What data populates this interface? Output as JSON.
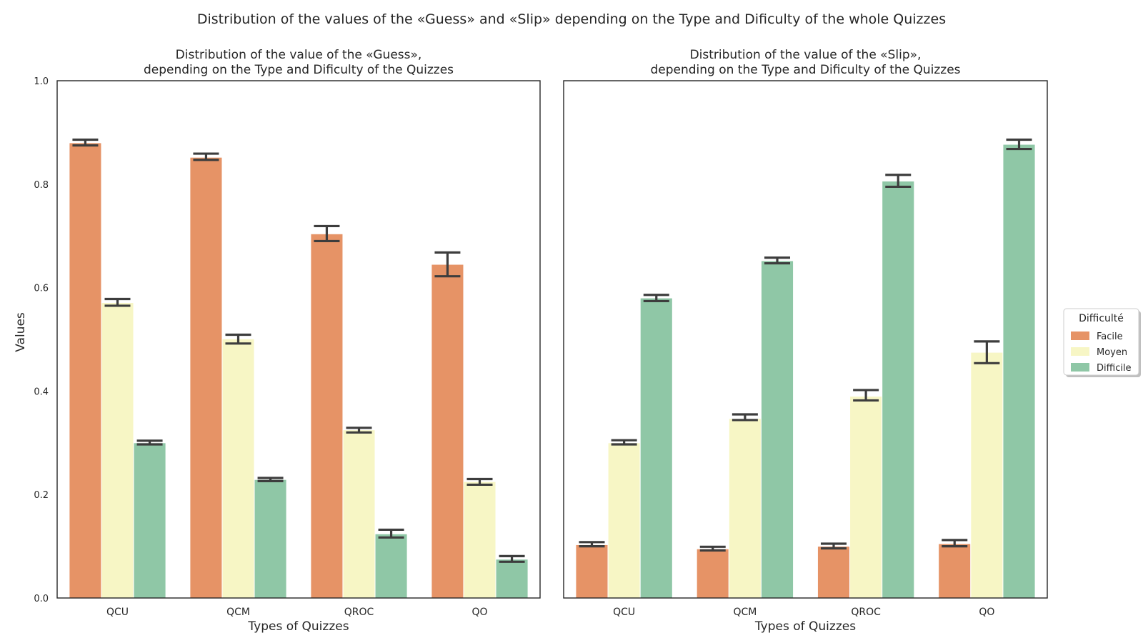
{
  "suptitle": "Distribution of the values of the «Guess» and «Slip» depending on the Type and Dificulty of the whole Quizzes",
  "ylabel": "Values",
  "legend": {
    "title": "Difficulté",
    "placement": "right-center",
    "entries": [
      "Facile",
      "Moyen",
      "Difficile"
    ]
  },
  "colors": {
    "Facile": "#e69366",
    "Moyen": "#f7f6c5",
    "Difficile": "#8fc7a6",
    "errorbar": "#3d3d3d"
  },
  "chart_data": [
    {
      "type": "bar",
      "title": "Distribution of the value of the «Guess»,\ndepending on the Type and Dificulty of the Quizzes",
      "xlabel": "Types of Quizzes",
      "ylabel": "Values",
      "categories": [
        "QCU",
        "QCM",
        "QROC",
        "QO"
      ],
      "ylim": [
        0,
        1
      ],
      "yticks": [
        "0.0",
        "0.2",
        "0.4",
        "0.6",
        "0.8",
        "1.0"
      ],
      "grid": false,
      "series": [
        {
          "name": "Facile",
          "values": [
            0.88,
            0.852,
            0.704,
            0.645
          ],
          "err_low": [
            0.875,
            0.847,
            0.69,
            0.622
          ],
          "err_high": [
            0.886,
            0.859,
            0.719,
            0.668
          ]
        },
        {
          "name": "Moyen",
          "values": [
            0.571,
            0.501,
            0.325,
            0.225
          ],
          "err_low": [
            0.565,
            0.492,
            0.32,
            0.219
          ],
          "err_high": [
            0.578,
            0.509,
            0.329,
            0.23
          ]
        },
        {
          "name": "Difficile",
          "values": [
            0.3,
            0.229,
            0.124,
            0.075
          ],
          "err_low": [
            0.297,
            0.226,
            0.117,
            0.07
          ],
          "err_high": [
            0.304,
            0.232,
            0.132,
            0.081
          ]
        }
      ]
    },
    {
      "type": "bar",
      "title": "Distribution of the value of the «Slip»,\ndepending on the Type and Dificulty of the Quizzes",
      "xlabel": "Types of Quizzes",
      "categories": [
        "QCU",
        "QCM",
        "QROC",
        "QO"
      ],
      "ylim": [
        0,
        1
      ],
      "grid": false,
      "series": [
        {
          "name": "Facile",
          "values": [
            0.103,
            0.095,
            0.1,
            0.105
          ],
          "err_low": [
            0.1,
            0.092,
            0.096,
            0.1
          ],
          "err_high": [
            0.108,
            0.099,
            0.105,
            0.112
          ]
        },
        {
          "name": "Moyen",
          "values": [
            0.3,
            0.347,
            0.39,
            0.475
          ],
          "err_low": [
            0.297,
            0.344,
            0.382,
            0.454
          ],
          "err_high": [
            0.305,
            0.355,
            0.402,
            0.496
          ]
        },
        {
          "name": "Difficile",
          "values": [
            0.58,
            0.652,
            0.806,
            0.877
          ],
          "err_low": [
            0.574,
            0.647,
            0.795,
            0.868
          ],
          "err_high": [
            0.586,
            0.658,
            0.818,
            0.886
          ]
        }
      ]
    }
  ]
}
